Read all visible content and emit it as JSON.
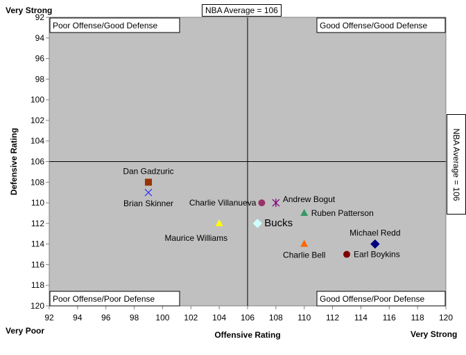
{
  "chart_data": {
    "type": "scatter",
    "xlabel": "Offensive Rating",
    "ylabel": "Defensive Rating",
    "xlim": [
      92,
      120
    ],
    "ylim": [
      92,
      120
    ],
    "y_inverted": true,
    "xticks": [
      92,
      94,
      96,
      98,
      100,
      102,
      104,
      106,
      108,
      110,
      112,
      114,
      116,
      118,
      120
    ],
    "yticks": [
      92,
      94,
      96,
      98,
      100,
      102,
      104,
      106,
      108,
      110,
      112,
      114,
      116,
      118,
      120
    ],
    "grid": false,
    "reference_lines": {
      "x": 106,
      "y": 106
    },
    "avg_label": "NBA Average = 106",
    "corner_labels": {
      "top_left": "Very Strong",
      "bottom_left": "Very Poor",
      "bottom_right": "Very Strong"
    },
    "quadrants": [
      {
        "label": "Poor Offense/Good Defense",
        "position": "top-left"
      },
      {
        "label": "Good Offense/Good Defense",
        "position": "top-right"
      },
      {
        "label": "Poor Offense/Poor Defense",
        "position": "bottom-left"
      },
      {
        "label": "Good Offense/Poor Defense",
        "position": "bottom-right"
      }
    ],
    "colors": {
      "plot_bg": "#c0c0c0",
      "axis": "#808080",
      "ref_line": "#000000"
    },
    "series": [
      {
        "name": "Dan Gadzuric",
        "x": 99,
        "y": 108,
        "marker": "square",
        "color": "#993300",
        "label_pos": "above"
      },
      {
        "name": "Brian Skinner",
        "x": 99,
        "y": 109,
        "marker": "x",
        "color": "#3333ff",
        "label_pos": "below"
      },
      {
        "name": "Charlie Villanueva",
        "x": 107,
        "y": 110,
        "marker": "circle",
        "color": "#993366",
        "label_pos": "left"
      },
      {
        "name": "Andrew Bogut",
        "x": 108,
        "y": 110,
        "marker": "star",
        "color": "#800080",
        "label_pos": "right"
      },
      {
        "name": "Ruben Patterson",
        "x": 110,
        "y": 111,
        "marker": "triangle",
        "color": "#339966",
        "label_pos": "right"
      },
      {
        "name": "Maurice Williams",
        "x": 104,
        "y": 112,
        "marker": "triangle",
        "color": "#ffff00",
        "label_pos": "below-left"
      },
      {
        "name": "Bucks",
        "x": 106.7,
        "y": 112,
        "marker": "diamond",
        "color": "#ccffff",
        "label_pos": "right",
        "label_large": true
      },
      {
        "name": "Michael Redd",
        "x": 115,
        "y": 114,
        "marker": "diamond",
        "color": "#000080",
        "label_pos": "above"
      },
      {
        "name": "Charlie Bell",
        "x": 110,
        "y": 114,
        "marker": "triangle",
        "color": "#ff6600",
        "label_pos": "below"
      },
      {
        "name": "Earl Boykins",
        "x": 113,
        "y": 115,
        "marker": "circle",
        "color": "#800000",
        "label_pos": "right"
      }
    ]
  }
}
